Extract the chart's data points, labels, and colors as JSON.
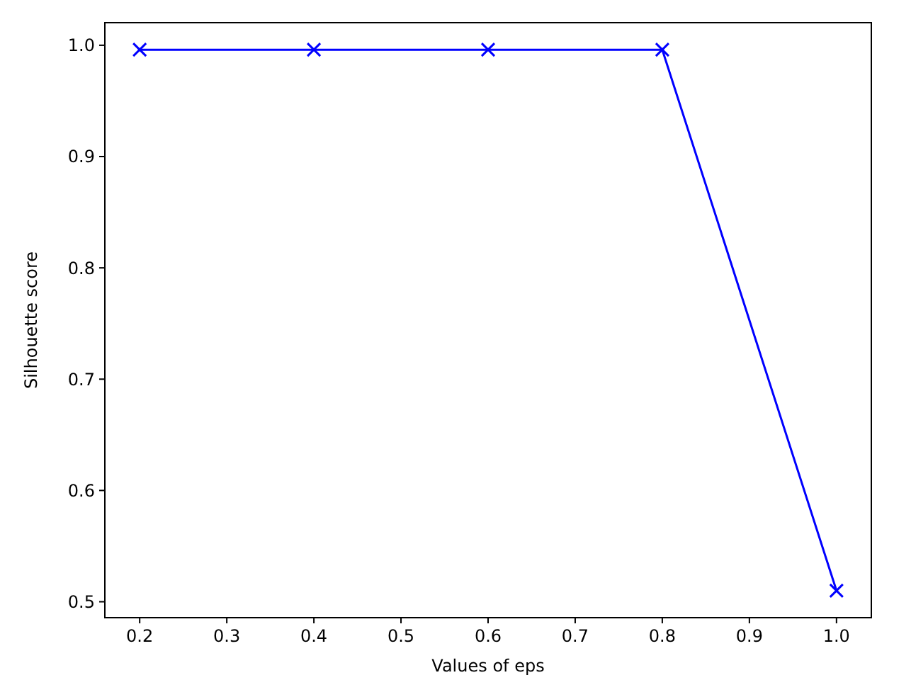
{
  "chart_data": {
    "type": "line",
    "xlabel": "Values of eps",
    "ylabel": "Silhouette score",
    "x": [
      0.2,
      0.4,
      0.6,
      0.8,
      1.0
    ],
    "series": [
      {
        "color": "#0000ff",
        "values": [
          0.996,
          0.996,
          0.996,
          0.996,
          0.51
        ]
      }
    ],
    "xlim": [
      0.16,
      1.04
    ],
    "xticks": [
      {
        "value": 0.2,
        "label": "0.2"
      },
      {
        "value": 0.3,
        "label": "0.3"
      },
      {
        "value": 0.4,
        "label": "0.4"
      },
      {
        "value": 0.5,
        "label": "0.5"
      },
      {
        "value": 0.6,
        "label": "0.6"
      },
      {
        "value": 0.7,
        "label": "0.7"
      },
      {
        "value": 0.8,
        "label": "0.8"
      },
      {
        "value": 0.9,
        "label": "0.9"
      },
      {
        "value": 1.0,
        "label": "1.0"
      }
    ],
    "ylim": [
      0.4857,
      1.0203
    ],
    "yticks": [
      {
        "value": 0.5,
        "label": "0.5"
      },
      {
        "value": 0.6,
        "label": "0.6"
      },
      {
        "value": 0.7,
        "label": "0.7"
      },
      {
        "value": 0.8,
        "label": "0.8"
      },
      {
        "value": 0.9,
        "label": "0.9"
      },
      {
        "value": 1.0,
        "label": "1.0"
      }
    ],
    "grid": false,
    "marker": "cross",
    "line_style": "solid"
  }
}
